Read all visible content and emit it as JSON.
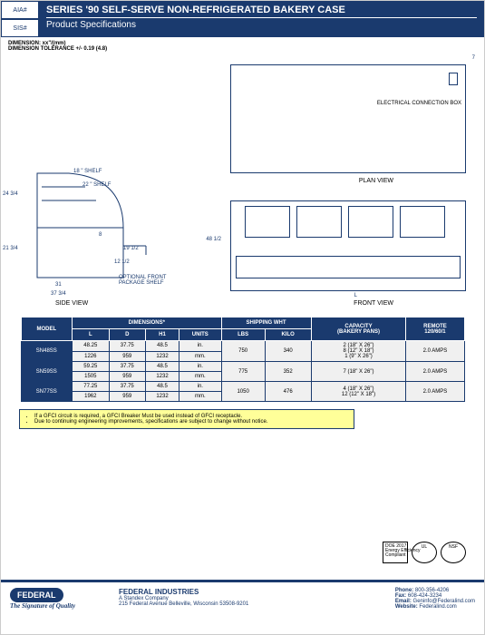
{
  "header": {
    "aia_label": "AIA#",
    "sis_label": "SIS#",
    "title": "SERIES '90 SELF-SERVE NON-REFRIGERATED BAKERY CASE",
    "subtitle": "Product Specifications"
  },
  "dim_note1": "DIMENSION: xx\"/(mm)",
  "dim_note2": "DIMENSION TOLERANCE +/- 0.19 (4.8)",
  "diagram": {
    "shelf18": "18 \" SHELF",
    "shelf22": "22 \" SHELF",
    "d24_75": "24 3/4",
    "d21_75": "21 3/4",
    "d31": "31",
    "d37_75": "37 3/4",
    "d8": "8",
    "d19_5": "19 1/2",
    "d12_5": "12 1/2",
    "d48_5": "48 1/2",
    "d7": "7",
    "L": "L",
    "opt_shelf": "OPTIONAL FRONT\nPACKAGE SHELF",
    "elec_box": "ELECTRICAL\nCONNECTION\nBOX",
    "plan_view": "PLAN VIEW",
    "side_view": "SIDE VIEW",
    "front_view": "FRONT VIEW"
  },
  "table": {
    "headers": {
      "model": "MODEL",
      "dimensions": "DIMENSIONS*",
      "L": "L",
      "D": "D",
      "H1": "H1",
      "units": "UNITS",
      "shipping": "SHIPPING WHT",
      "lbs": "LBS",
      "kilo": "KILO",
      "capacity": "CAPACITY\n(BAKERY PANS)",
      "remote": "REMOTE\n120/60/1"
    },
    "rows": [
      {
        "model": "SN48SS",
        "L1": "48.25",
        "D1": "37.75",
        "H1": "48.5",
        "u1": "in.",
        "L2": "1226",
        "D2": "959",
        "H2": "1232",
        "u2": "mm.",
        "lbs": "750",
        "kilo": "340",
        "cap": "2 (18\" X 26\")\n8 (12\" X 18\")\n1 (9\" X 26\")",
        "amps": "2.0 AMPS"
      },
      {
        "model": "SN59SS",
        "L1": "59.25",
        "D1": "37.75",
        "H1": "48.5",
        "u1": "in.",
        "L2": "1505",
        "D2": "959",
        "H2": "1232",
        "u2": "mm.",
        "lbs": "775",
        "kilo": "352",
        "cap": "7 (18\" X 26\")",
        "amps": "2.0 AMPS"
      },
      {
        "model": "SN77SS",
        "L1": "77.25",
        "D1": "37.75",
        "H1": "48.5",
        "u1": "in.",
        "L2": "1962",
        "D2": "959",
        "H2": "1232",
        "u2": "mm.",
        "lbs": "1050",
        "kilo": "476",
        "cap": "4 (18\" X 26\")\n12 (12\" X 18\")",
        "amps": "2.0 AMPS"
      }
    ]
  },
  "notes": {
    "n1": "If a GFCI circuit is required, a GFCI Breaker Must be used instead of GFCI receptacle.",
    "n2": "Due to continuing engineering improvements, specifications are subject to change without notice."
  },
  "certs": {
    "doe": "DOE 2017\nEnergy Efficiency\nCompliant",
    "ul": "UL",
    "nsf": "NSF"
  },
  "footer": {
    "logo_name": "FEDERAL",
    "signature": "The Signature of Quality",
    "company": "FEDERAL INDUSTRIES",
    "standex": "A Standex Company",
    "address": "215 Federal Avenue Belleville, Wisconsin 53508-9201",
    "phone_l": "Phone:",
    "phone": "800-356-4206",
    "fax_l": "Fax:",
    "fax": "608-424-3234",
    "email_l": "Email:",
    "email": "Geninfo@Federalind.com",
    "web_l": "Website:",
    "web": "Federalind.com"
  },
  "colors": {
    "brand": "#1a3a6e",
    "note_bg": "#ffff99"
  }
}
